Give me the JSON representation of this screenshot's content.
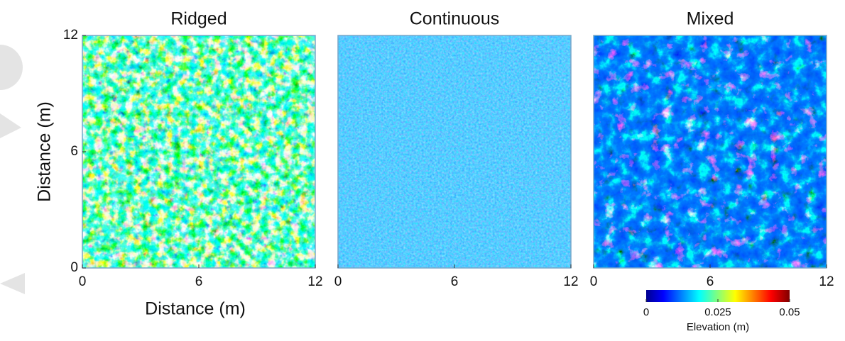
{
  "chart_data": [
    {
      "type": "heatmap",
      "title": "Ridged",
      "xlabel": "Distance (m)",
      "ylabel": "Distance (m)",
      "xlim": [
        0,
        12
      ],
      "xticks": [
        0,
        6,
        12
      ],
      "ylim": [
        0,
        12
      ],
      "yticks": [
        0,
        6,
        12
      ]
    },
    {
      "type": "heatmap",
      "title": "Continuous",
      "xlim": [
        0,
        12
      ],
      "xticks": [
        0,
        6,
        12
      ]
    },
    {
      "type": "heatmap",
      "title": "Mixed",
      "xlim": [
        0,
        12
      ],
      "xticks": [
        0,
        6,
        12
      ],
      "colorbar": {
        "label": "Elevation (m)",
        "lim": [
          0,
          0.05
        ],
        "ticks": [
          0,
          0.025,
          0.05
        ]
      }
    }
  ]
}
